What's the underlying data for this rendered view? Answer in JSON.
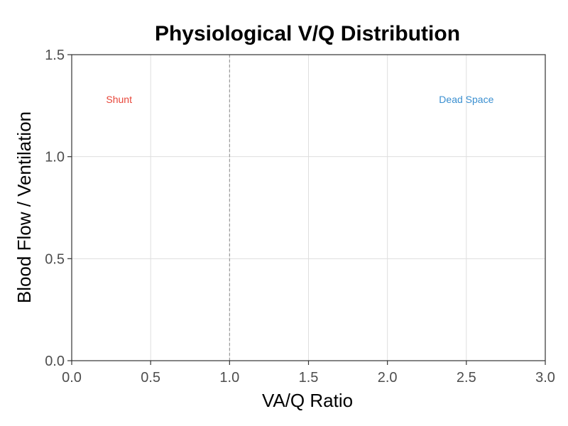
{
  "chart_data": {
    "type": "line",
    "title": "Physiological V/Q Distribution",
    "xlabel": "VA/Q Ratio",
    "ylabel": "Blood Flow / Ventilation",
    "xlim": [
      0,
      3
    ],
    "ylim": [
      0,
      1.5
    ],
    "x_ticks": [
      0,
      0.5,
      1,
      1.5,
      2,
      2.5,
      3
    ],
    "x_tick_labels": [
      "0.0",
      "0.5",
      "1.0",
      "1.5",
      "2.0",
      "2.5",
      "3.0"
    ],
    "y_ticks": [
      0,
      0.5,
      1,
      1.5
    ],
    "y_tick_labels": [
      "0.0",
      "0.5",
      "1.0",
      "1.5"
    ],
    "grid": true,
    "series": [],
    "reference_lines": [
      {
        "orientation": "vertical",
        "x": 1.0,
        "style": "dashed",
        "color": "#8c8c8c"
      }
    ],
    "annotations": [
      {
        "text": "Shunt",
        "x": 0.3,
        "y": 1.28,
        "color": "#e8463a"
      },
      {
        "text": "Dead Space",
        "x": 2.5,
        "y": 1.28,
        "color": "#3a8fd0"
      }
    ]
  }
}
